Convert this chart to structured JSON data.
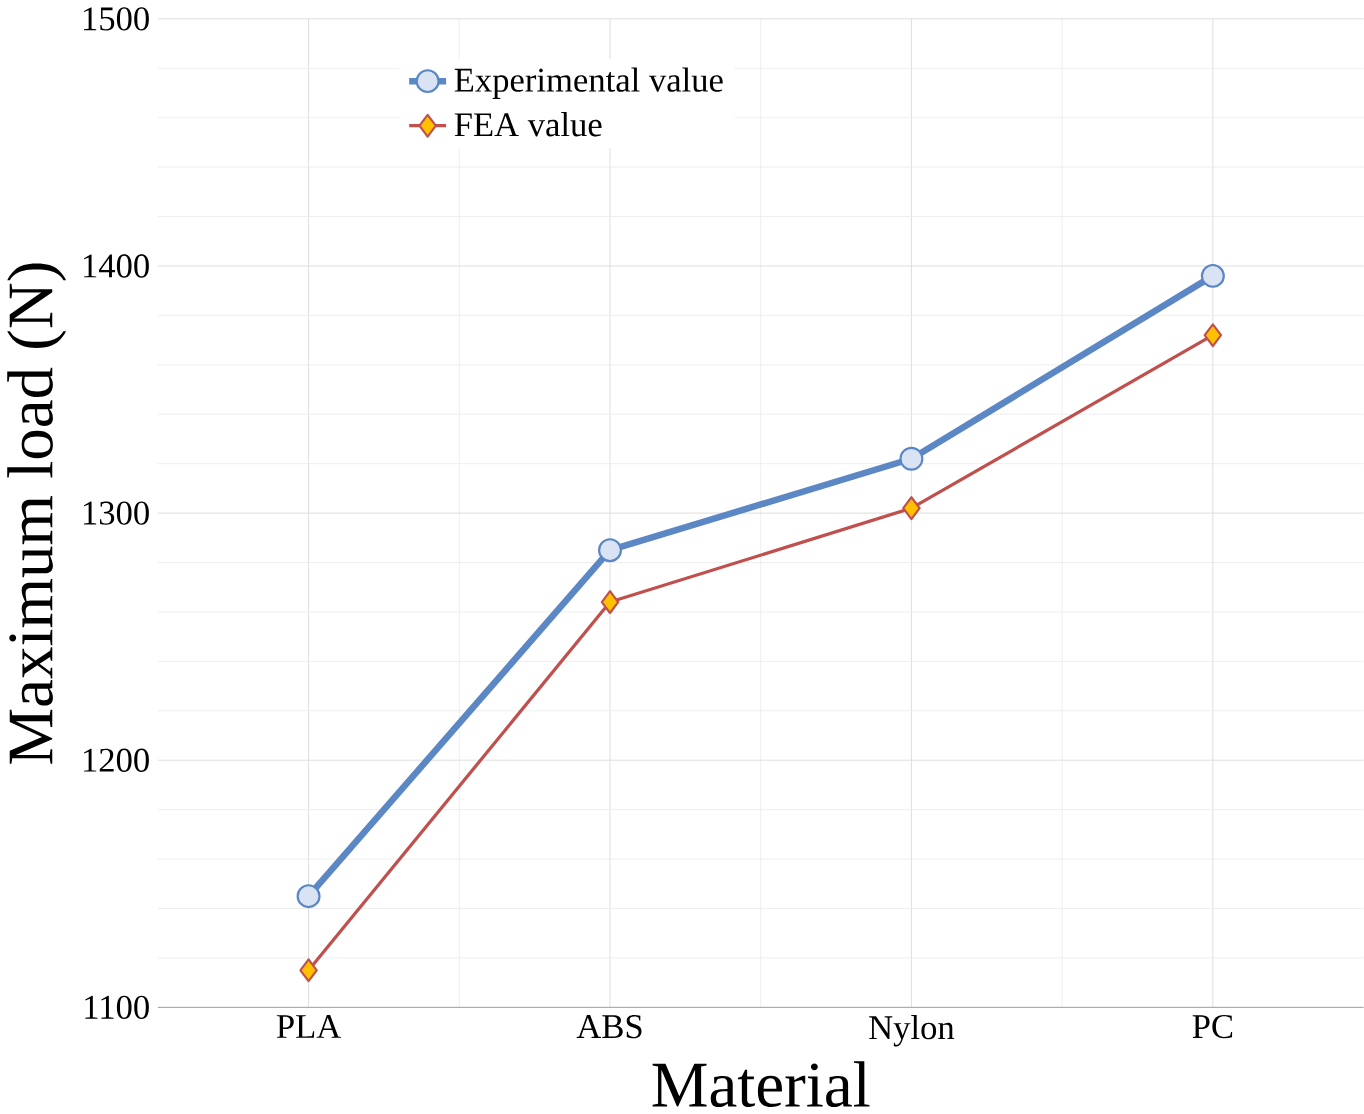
{
  "chart_data": {
    "type": "line",
    "xlabel": "Material",
    "ylabel": "Maximum load (N)",
    "categories": [
      "PLA",
      "ABS",
      "Nylon",
      "PC"
    ],
    "series": [
      {
        "name": "Experimental value",
        "color": "#5b87c5",
        "marker": "circle",
        "values": [
          1145,
          1285,
          1322,
          1396
        ]
      },
      {
        "name": "FEA value",
        "color": "#c0504d",
        "marker": "diamond",
        "values": [
          1115,
          1264,
          1302,
          1372
        ]
      }
    ],
    "ylim": [
      1100,
      1500
    ],
    "yticks": [
      1100,
      1200,
      1300,
      1400,
      1500
    ],
    "grid": true,
    "legend": "top left"
  }
}
